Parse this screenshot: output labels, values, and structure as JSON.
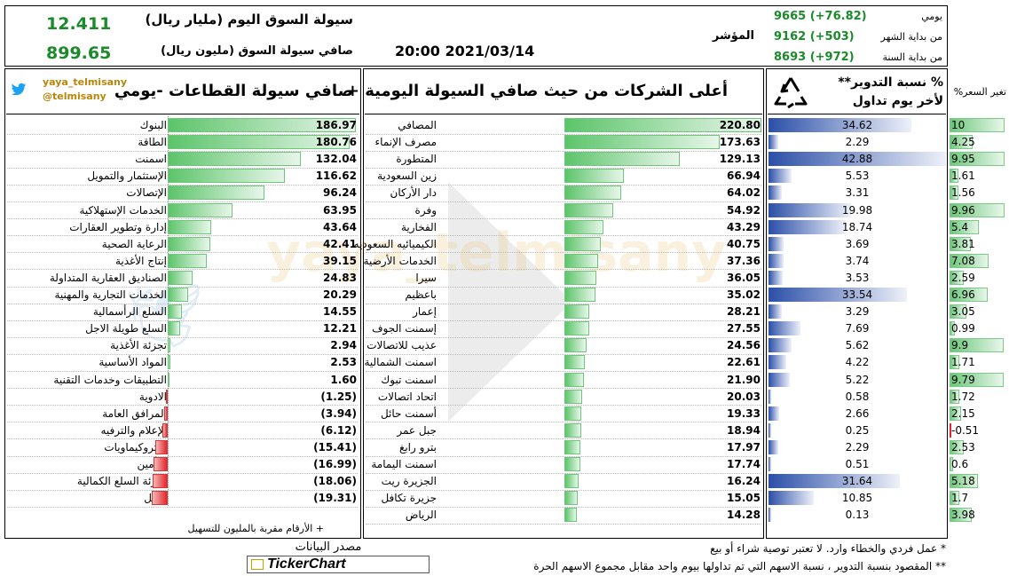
{
  "header": {
    "liquidity_title": "سيولة السوق اليوم (مليار ريال)",
    "liquidity_value": "12.411",
    "net_title": "صافي سيولة السوق (مليون ريال)",
    "net_value": "899.65",
    "datetime": "20:00 2021/03/14",
    "index_label": "المؤشر",
    "index_rows": [
      {
        "label": "يومي",
        "value": "9665 (+76.82)"
      },
      {
        "label": "من بداية الشهر",
        "value": "9162 (+503)"
      },
      {
        "label": "من بداية السنة",
        "value": "8693 (+972)"
      }
    ]
  },
  "twitter": {
    "handle1": "yaya_telmisany",
    "handle2": "@telmisany"
  },
  "sectors_title": "صافي سيولة القطاعات -يومي",
  "companies_title": "أعلى الشركات من حيث صافي السيولة اليومية +",
  "turnover_title1": "% نسبة التدوير**",
  "turnover_title2": "لأخر يوم تداول",
  "price_change_title": "تغير السعر%",
  "sectors": [
    {
      "name": "البنوك",
      "value": "186.97",
      "v": 186.97
    },
    {
      "name": "الطاقة",
      "value": "180.76",
      "v": 180.76
    },
    {
      "name": "اسمنت",
      "value": "132.04",
      "v": 132.04
    },
    {
      "name": "الإستثمار والتمويل",
      "value": "116.62",
      "v": 116.62
    },
    {
      "name": "الإتصالات",
      "value": "96.24",
      "v": 96.24
    },
    {
      "name": "الخدمات الإستهلاكية",
      "value": "63.95",
      "v": 63.95
    },
    {
      "name": "إدارة وتطوير العقارات",
      "value": "43.64",
      "v": 43.64
    },
    {
      "name": "الرعاية الصحية",
      "value": "42.41",
      "v": 42.41
    },
    {
      "name": "إنتاج الأغذية",
      "value": "39.15",
      "v": 39.15
    },
    {
      "name": "الصناديق العقارية المتداولة",
      "value": "24.83",
      "v": 24.83
    },
    {
      "name": "الخدمات التجارية والمهنية",
      "value": "20.29",
      "v": 20.29
    },
    {
      "name": "السلع الرأسمالية",
      "value": "14.55",
      "v": 14.55
    },
    {
      "name": "السلع طويلة الاجل",
      "value": "12.21",
      "v": 12.21
    },
    {
      "name": "تجزئة الأغذية",
      "value": "2.94",
      "v": 2.94
    },
    {
      "name": "المواد الأساسية",
      "value": "2.53",
      "v": 2.53
    },
    {
      "name": "التطبيقات وخدمات التقنية",
      "value": "1.60",
      "v": 1.6
    },
    {
      "name": "الادوية",
      "value": "(1.25)",
      "v": -1.25
    },
    {
      "name": "المرافق العامة",
      "value": "(3.94)",
      "v": -3.94
    },
    {
      "name": "الإعلام والترفيه",
      "value": "(6.12)",
      "v": -6.12
    },
    {
      "name": "البتروكيماويات",
      "value": "(15.41)",
      "v": -15.41
    },
    {
      "name": "التأمين",
      "value": "(16.99)",
      "v": -16.99
    },
    {
      "name": "تجزئة السلع الكمالية",
      "value": "(18.06)",
      "v": -18.06
    },
    {
      "name": "النقل",
      "value": "(19.31)",
      "v": -19.31
    }
  ],
  "companies": [
    {
      "name": "المصافي",
      "value": "220.80",
      "v": 220.8,
      "turnover": "34.62",
      "t": 34.62,
      "change": "10",
      "c": 10
    },
    {
      "name": "مصرف الإنماء",
      "value": "173.63",
      "v": 173.63,
      "turnover": "2.29",
      "t": 2.29,
      "change": "4.25",
      "c": 4.25
    },
    {
      "name": "المتطورة",
      "value": "129.13",
      "v": 129.13,
      "turnover": "42.88",
      "t": 42.88,
      "change": "9.95",
      "c": 9.95
    },
    {
      "name": "زين السعودية",
      "value": "66.94",
      "v": 66.94,
      "turnover": "5.53",
      "t": 5.53,
      "change": "1.61",
      "c": 1.61
    },
    {
      "name": "دار الأركان",
      "value": "64.02",
      "v": 64.02,
      "turnover": "3.31",
      "t": 3.31,
      "change": "1.56",
      "c": 1.56
    },
    {
      "name": "وفرة",
      "value": "54.92",
      "v": 54.92,
      "turnover": "19.98",
      "t": 19.98,
      "change": "9.96",
      "c": 9.96
    },
    {
      "name": "الفخارية",
      "value": "43.29",
      "v": 43.29,
      "turnover": "18.74",
      "t": 18.74,
      "change": "5.4",
      "c": 5.4
    },
    {
      "name": "الكيميائيه السعوديه",
      "value": "40.75",
      "v": 40.75,
      "turnover": "3.69",
      "t": 3.69,
      "change": "3.81",
      "c": 3.81
    },
    {
      "name": "الخدمات الأرضية",
      "value": "37.36",
      "v": 37.36,
      "turnover": "3.74",
      "t": 3.74,
      "change": "7.08",
      "c": 7.08
    },
    {
      "name": "سيرا",
      "value": "36.05",
      "v": 36.05,
      "turnover": "3.53",
      "t": 3.53,
      "change": "2.59",
      "c": 2.59
    },
    {
      "name": "باعظيم",
      "value": "35.02",
      "v": 35.02,
      "turnover": "33.54",
      "t": 33.54,
      "change": "6.96",
      "c": 6.96
    },
    {
      "name": "إعمار",
      "value": "28.21",
      "v": 28.21,
      "turnover": "3.29",
      "t": 3.29,
      "change": "3.05",
      "c": 3.05
    },
    {
      "name": "إسمنت الجوف",
      "value": "27.55",
      "v": 27.55,
      "turnover": "7.69",
      "t": 7.69,
      "change": "0.99",
      "c": 0.99
    },
    {
      "name": "عذيب للاتصالات",
      "value": "24.56",
      "v": 24.56,
      "turnover": "5.62",
      "t": 5.62,
      "change": "9.9",
      "c": 9.9
    },
    {
      "name": "اسمنت الشمالية",
      "value": "22.61",
      "v": 22.61,
      "turnover": "4.22",
      "t": 4.22,
      "change": "1.71",
      "c": 1.71
    },
    {
      "name": "اسمنت تبوك",
      "value": "21.90",
      "v": 21.9,
      "turnover": "5.22",
      "t": 5.22,
      "change": "9.79",
      "c": 9.79
    },
    {
      "name": "اتحاد اتصالات",
      "value": "20.03",
      "v": 20.03,
      "turnover": "0.58",
      "t": 0.58,
      "change": "1.72",
      "c": 1.72
    },
    {
      "name": "أسمنت حائل",
      "value": "19.33",
      "v": 19.33,
      "turnover": "2.66",
      "t": 2.66,
      "change": "2.15",
      "c": 2.15
    },
    {
      "name": "جبل عمر",
      "value": "18.94",
      "v": 18.94,
      "turnover": "0.25",
      "t": 0.25,
      "change": "-0.51",
      "c": -0.51
    },
    {
      "name": "بترو رابغ",
      "value": "17.97",
      "v": 17.97,
      "turnover": "2.29",
      "t": 2.29,
      "change": "2.53",
      "c": 2.53
    },
    {
      "name": "اسمنت اليمامة",
      "value": "17.74",
      "v": 17.74,
      "turnover": "0.51",
      "t": 0.51,
      "change": "0.6",
      "c": 0.6
    },
    {
      "name": "الجزيرة ريت",
      "value": "16.24",
      "v": 16.24,
      "turnover": "31.64",
      "t": 31.64,
      "change": "5.18",
      "c": 5.18
    },
    {
      "name": "جزيرة تكافل",
      "value": "15.05",
      "v": 15.05,
      "turnover": "10.85",
      "t": 10.85,
      "change": "1.7",
      "c": 1.7
    },
    {
      "name": "الرياض",
      "value": "14.28",
      "v": 14.28,
      "turnover": "0.13",
      "t": 0.13,
      "change": "3.98",
      "c": 3.98
    }
  ],
  "footnote_left": "+ الأرقام مقربة بالمليون للتسهيل",
  "source_label": "مصدر البيانات",
  "source_brand": "TickerChart",
  "notes": [
    "* عمل فردي والخطاء وارد. لا تعتبر توصية شراء أو بيع",
    "** المقصود بنسبة التدوير ، نسبة الاسهم التي تم تداولها بيوم واحد مقابل مجموع الاسهم الحرة"
  ],
  "colors": {
    "green": "#1a8a2a",
    "bar_green": "#5cc46a",
    "bar_red": "#e3262c",
    "bar_blue": "#2b4fa8",
    "twitter": "#1da1f2"
  }
}
